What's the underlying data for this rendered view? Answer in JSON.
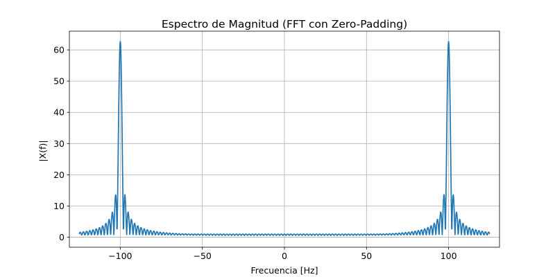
{
  "chart_data": {
    "type": "line",
    "title": "Espectro de Magnitud (FFT con Zero-Padding)",
    "xlabel": "Frecuencia [Hz]",
    "ylabel": "|X(f)|",
    "xlim": [
      -131,
      131
    ],
    "ylim": [
      -3.2,
      66
    ],
    "xticks": [
      -100,
      -50,
      0,
      50,
      100
    ],
    "xtick_labels": [
      "−100",
      "−50",
      "0",
      "50",
      "100"
    ],
    "yticks": [
      0,
      10,
      20,
      30,
      40,
      50,
      60
    ],
    "ytick_labels": [
      "0",
      "10",
      "20",
      "30",
      "40",
      "50",
      "60"
    ],
    "grid": true,
    "series_color": "#1f77b4",
    "spectrum": {
      "x_start": -125,
      "x_end": 125,
      "tone_frequencies": [
        -100,
        100
      ],
      "peak_magnitude": 62.5,
      "lobe_spacing_hz": 1.95,
      "baseline_magnitude": 1
    }
  }
}
